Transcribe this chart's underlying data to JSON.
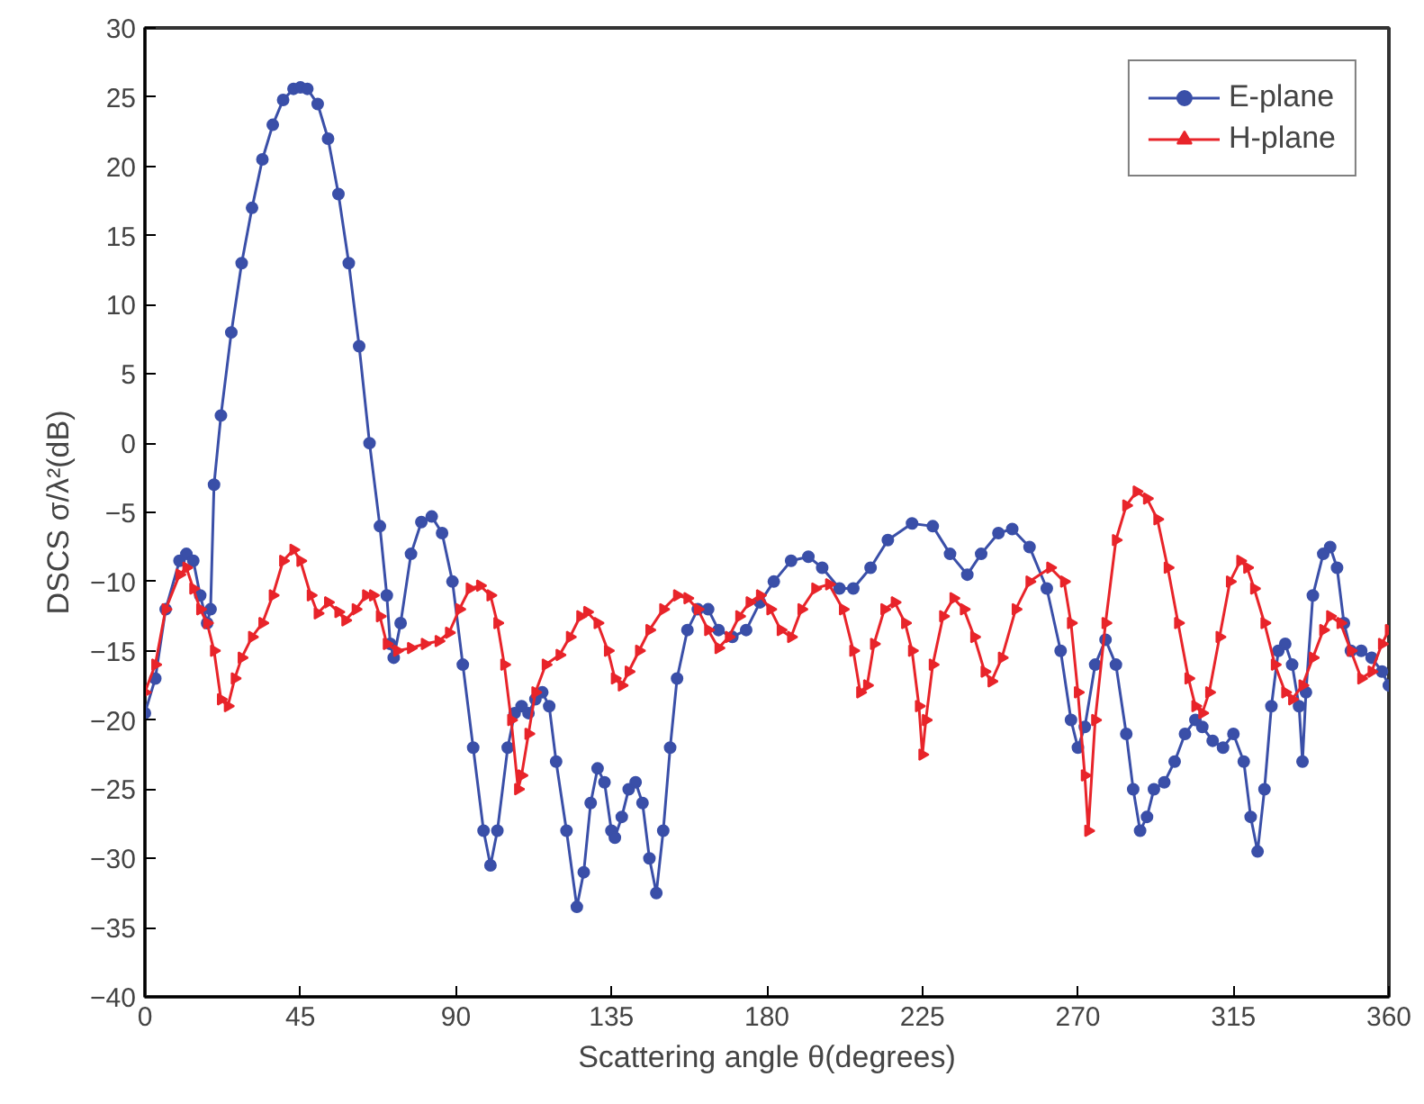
{
  "chart_data": {
    "type": "line",
    "xlabel": "Scattering angle θ(degrees)",
    "ylabel": "DSCS σ/λ²(dB)",
    "xlim": [
      0,
      360
    ],
    "ylim": [
      -40,
      30
    ],
    "xticks": [
      0,
      45,
      90,
      135,
      180,
      225,
      270,
      315,
      360
    ],
    "yticks": [
      -40,
      -35,
      -30,
      -25,
      -20,
      -15,
      -10,
      -5,
      0,
      5,
      10,
      15,
      20,
      25,
      30
    ],
    "grid": false,
    "legend": "top right",
    "line_style": "solid",
    "series": [
      {
        "name": "E-plane",
        "color": "#3a4fa8",
        "marker": "circle",
        "x": [
          0,
          3,
          6,
          10,
          12,
          14,
          16,
          18,
          19,
          20,
          22,
          25,
          28,
          31,
          34,
          37,
          40,
          43,
          45,
          47,
          50,
          53,
          56,
          59,
          62,
          65,
          68,
          70,
          71,
          72,
          74,
          77,
          80,
          83,
          86,
          89,
          92,
          95,
          98,
          100,
          102,
          105,
          107,
          109,
          111,
          113,
          115,
          117,
          119,
          122,
          125,
          127,
          129,
          131,
          133,
          135,
          136,
          138,
          140,
          142,
          144,
          146,
          148,
          150,
          152,
          154,
          157,
          160,
          163,
          166,
          170,
          174,
          178,
          182,
          187,
          192,
          196,
          201,
          205,
          210,
          215,
          222,
          228,
          233,
          238,
          242,
          247,
          251,
          256,
          261,
          265,
          268,
          270,
          272,
          275,
          278,
          281,
          284,
          286,
          288,
          290,
          292,
          295,
          298,
          301,
          304,
          306,
          309,
          312,
          315,
          318,
          320,
          322,
          324,
          326,
          328,
          330,
          332,
          334,
          335,
          336,
          338,
          341,
          343,
          345,
          347,
          349,
          352,
          355,
          358,
          360
        ],
        "values": [
          -19.5,
          -17,
          -12,
          -8.5,
          -8,
          -8.5,
          -11,
          -13,
          -12,
          -3,
          2,
          8,
          13,
          17,
          20.5,
          23,
          24.8,
          25.6,
          25.7,
          25.6,
          24.5,
          22,
          18,
          13,
          7,
          0,
          -6,
          -11,
          -14.5,
          -15.5,
          -13,
          -8,
          -5.7,
          -5.3,
          -6.5,
          -10,
          -16,
          -22,
          -28,
          -30.5,
          -28,
          -22,
          -19.5,
          -19,
          -19.5,
          -18.5,
          -18,
          -19,
          -23,
          -28,
          -33.5,
          -31,
          -26,
          -23.5,
          -24.5,
          -28,
          -28.5,
          -27,
          -25,
          -24.5,
          -26,
          -30,
          -32.5,
          -28,
          -22,
          -17,
          -13.5,
          -12,
          -12,
          -13.5,
          -14,
          -13.5,
          -11.5,
          -10,
          -8.5,
          -8.2,
          -9,
          -10.5,
          -10.5,
          -9,
          -7,
          -5.8,
          -6,
          -8,
          -9.5,
          -8,
          -6.5,
          -6.2,
          -7.5,
          -10.5,
          -15,
          -20,
          -22,
          -20.5,
          -16,
          -14.2,
          -16,
          -21,
          -25,
          -28,
          -27,
          -25,
          -24.5,
          -23,
          -21,
          -20,
          -20.5,
          -21.5,
          -22,
          -21,
          -23,
          -27,
          -29.5,
          -25,
          -19,
          -15,
          -14.5,
          -16,
          -19,
          -23,
          -18,
          -11,
          -8,
          -7.5,
          -9,
          -13,
          -15,
          -15,
          -15.5,
          -16.5,
          -17.5
        ]
      },
      {
        "name": "H-plane",
        "color": "#e8242a",
        "marker": "triangle",
        "x": [
          0,
          3,
          6,
          10,
          12,
          14,
          16,
          18,
          20,
          22,
          24,
          26,
          28,
          31,
          34,
          37,
          40,
          43,
          45,
          48,
          50,
          53,
          56,
          58,
          61,
          64,
          66,
          68,
          70,
          73,
          77,
          81,
          85,
          88,
          91,
          94,
          97,
          100,
          102,
          104,
          106,
          108,
          109,
          111,
          113,
          116,
          120,
          123,
          126,
          128,
          131,
          134,
          136,
          138,
          140,
          143,
          146,
          150,
          154,
          157,
          160,
          163,
          166,
          169,
          172,
          175,
          178,
          181,
          184,
          187,
          190,
          194,
          198,
          202,
          205,
          207,
          209,
          211,
          214,
          217,
          220,
          222,
          224,
          225,
          226,
          228,
          231,
          234,
          237,
          240,
          243,
          245,
          248,
          252,
          256,
          262,
          266,
          268,
          270,
          272,
          273,
          275,
          278,
          281,
          284,
          287,
          290,
          293,
          296,
          299,
          302,
          304,
          306,
          308,
          311,
          314,
          317,
          319,
          321,
          324,
          327,
          330,
          332,
          335,
          338,
          341,
          343,
          346,
          349,
          352,
          355,
          358,
          360
        ],
        "values": [
          -18,
          -16,
          -12,
          -9.5,
          -9,
          -10.5,
          -12,
          -13,
          -15,
          -18.5,
          -19,
          -17,
          -15.5,
          -14,
          -13,
          -11,
          -8.5,
          -7.7,
          -8.5,
          -11,
          -12.3,
          -11.5,
          -12.2,
          -12.8,
          -12,
          -11,
          -11,
          -12.5,
          -14.5,
          -15,
          -14.8,
          -14.5,
          -14.3,
          -13.7,
          -12,
          -10.5,
          -10.3,
          -11,
          -13,
          -16,
          -20,
          -25,
          -24,
          -21,
          -18,
          -16,
          -15.3,
          -14,
          -12.5,
          -12.2,
          -13,
          -15,
          -17,
          -17.5,
          -16.5,
          -15,
          -13.5,
          -12,
          -11,
          -11.2,
          -12,
          -13.5,
          -14.8,
          -14,
          -12.5,
          -11.5,
          -11,
          -12,
          -13.5,
          -14,
          -12,
          -10.5,
          -10.2,
          -12,
          -15,
          -18,
          -17.5,
          -14.5,
          -12,
          -11.5,
          -13,
          -15,
          -19,
          -22.5,
          -20,
          -16,
          -12.5,
          -11.2,
          -12,
          -14,
          -16.5,
          -17.2,
          -15.5,
          -12,
          -10,
          -9,
          -10,
          -13,
          -18,
          -24,
          -28,
          -20,
          -13,
          -7,
          -4.5,
          -3.5,
          -4,
          -5.5,
          -9,
          -13,
          -17,
          -19,
          -19.5,
          -18,
          -14,
          -10,
          -8.5,
          -9,
          -10.5,
          -13,
          -16,
          -18,
          -18.5,
          -17.5,
          -15.5,
          -13.5,
          -12.5,
          -13,
          -15,
          -17,
          -16.5,
          -14.5,
          -13.5
        ]
      }
    ]
  }
}
